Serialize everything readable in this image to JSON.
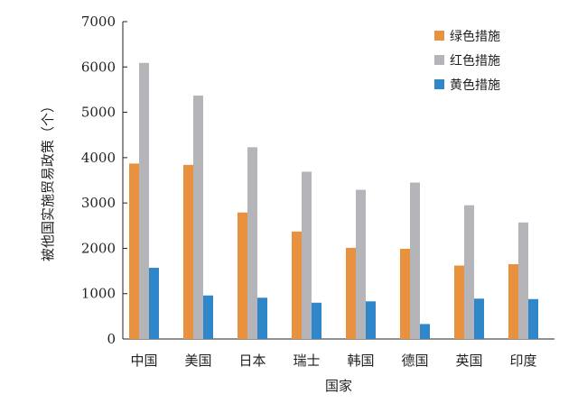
{
  "chart_data": {
    "type": "bar",
    "title": "",
    "xlabel": "国家",
    "ylabel": "被他国实施贸易政策（个）",
    "ylim": [
      0,
      7000
    ],
    "yticks": [
      0,
      1000,
      2000,
      3000,
      4000,
      5000,
      6000,
      7000
    ],
    "grid": false,
    "legend_position": "top-right",
    "categories": [
      "中国",
      "美国",
      "日本",
      "瑞士",
      "韩国",
      "德国",
      "英国",
      "印度"
    ],
    "series": [
      {
        "name": "绿色措施",
        "color": "#e8913f",
        "values": [
          3870,
          3840,
          2790,
          2370,
          2010,
          1990,
          1620,
          1650
        ]
      },
      {
        "name": "红色措施",
        "color": "#b5b5b9",
        "values": [
          6090,
          5370,
          4230,
          3690,
          3290,
          3450,
          2950,
          2570
        ]
      },
      {
        "name": "黄色措施",
        "color": "#2f86c9",
        "values": [
          1570,
          960,
          910,
          800,
          830,
          330,
          890,
          880
        ]
      }
    ]
  }
}
